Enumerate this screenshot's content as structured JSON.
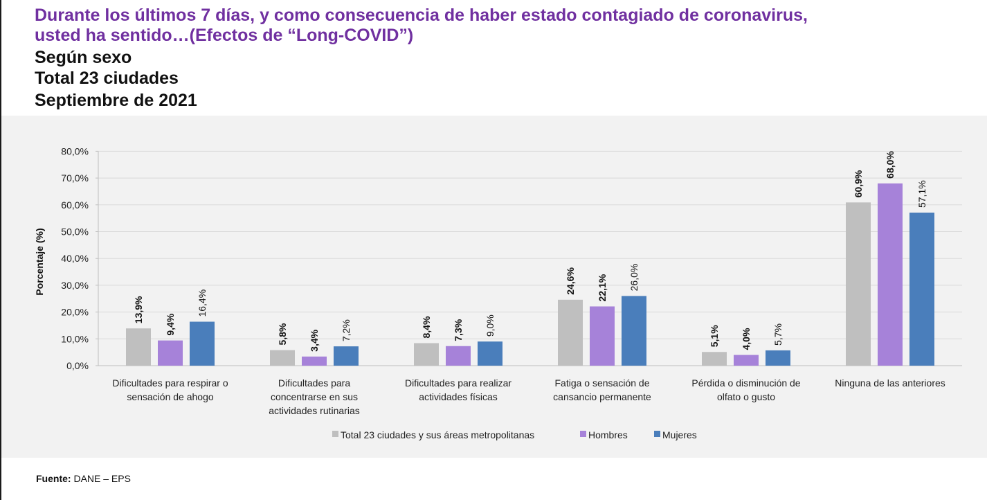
{
  "header": {
    "title_line1": "Durante los últimos 7 días, y como consecuencia de haber estado contagiado de coronavirus,",
    "title_line2": "usted ha sentido…(Efectos de “Long-COVID”)",
    "line3": "Según sexo",
    "line4": "Total 23 ciudades",
    "line5": "Septiembre de 2021"
  },
  "chart_data": {
    "type": "bar",
    "ylabel": "Porcentaje (%)",
    "ylim": [
      0,
      80
    ],
    "yticks": [
      "0,0%",
      "10,0%",
      "20,0%",
      "30,0%",
      "40,0%",
      "50,0%",
      "60,0%",
      "70,0%",
      "80,0%"
    ],
    "categories": [
      [
        "Dificultades para respirar o",
        "sensación de ahogo"
      ],
      [
        "Dificultades para",
        "concentrarse en sus",
        "actividades rutinarias"
      ],
      [
        "Dificultades para realizar",
        "actividades físicas"
      ],
      [
        "Fatiga o sensación de",
        "cansancio permanente"
      ],
      [
        "Pérdida o disminución de",
        "olfato o gusto"
      ],
      [
        "Ninguna de las anteriores"
      ]
    ],
    "series": [
      {
        "name": "Total 23 ciudades y sus áreas metropolitanas",
        "color": "#bfbfbf",
        "bold_labels": true,
        "values": [
          13.9,
          5.8,
          8.4,
          24.6,
          5.1,
          60.9
        ],
        "labels": [
          "13,9%",
          "5,8%",
          "8,4%",
          "24,6%",
          "5,1%",
          "60,9%"
        ]
      },
      {
        "name": "Hombres",
        "color": "#a682d9",
        "bold_labels": true,
        "values": [
          9.4,
          3.4,
          7.3,
          22.1,
          4.0,
          68.0
        ],
        "labels": [
          "9,4%",
          "3,4%",
          "7,3%",
          "22,1%",
          "4,0%",
          "68,0%"
        ]
      },
      {
        "name": "Mujeres",
        "color": "#4a7ebb",
        "bold_labels": false,
        "values": [
          16.4,
          7.2,
          9.0,
          26.0,
          5.7,
          57.1
        ],
        "labels": [
          "16,4%",
          "7,2%",
          "9,0%",
          "26,0%",
          "5,7%",
          "57,1%"
        ]
      }
    ],
    "legend_position": "bottom",
    "grid": true
  },
  "footer": {
    "source_label": "Fuente:",
    "source_text": " DANE – EPS"
  }
}
